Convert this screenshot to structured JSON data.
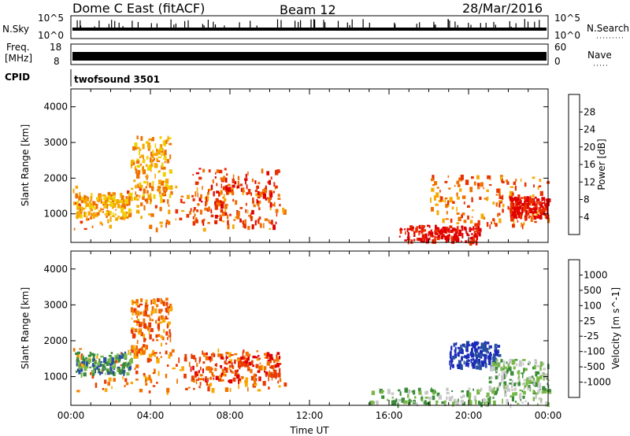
{
  "header": {
    "station": "Dome C East (fitACF)",
    "beam": "Beam 12",
    "date": "28/Mar/2016"
  },
  "strips": {
    "nsky": {
      "label": "N.Sky",
      "right_label": "N.Search",
      "left_ticks": [
        "10^5",
        "10^0"
      ],
      "right_ticks": [
        "10^5",
        "10^0"
      ]
    },
    "freq": {
      "label_line1": "Freq.",
      "label_line2": "[MHz]",
      "right_label": "Nave",
      "left_ticks": [
        "18",
        "8"
      ],
      "right_ticks": [
        "60",
        "0"
      ]
    },
    "cpid": {
      "label": "CPID",
      "value": "twofsound 3501"
    }
  },
  "colors": {
    "power_scale": [
      "#1414ff",
      "#1e50c8",
      "#2f8f3a",
      "#5aa35a",
      "#b8d83a",
      "#f0d000",
      "#f5a800",
      "#f07000",
      "#e83000",
      "#e00000"
    ],
    "velocity_scale": [
      "#e00000",
      "#e83a00",
      "#f07000",
      "#f8a800",
      "#f8d040",
      "#c8c8c8",
      "#78b848",
      "#3a8a3a",
      "#2850a0",
      "#1a2ab8"
    ]
  },
  "chart_data": [
    {
      "type": "heatmap",
      "name": "power",
      "ylabel": "Slant Range [km]",
      "yticks": [
        1000,
        2000,
        3000,
        4000
      ],
      "ylim": [
        200,
        4500
      ],
      "xlim": [
        0,
        24
      ],
      "colorbar": {
        "label": "Power [dB]",
        "ticks": [
          "28",
          "24",
          "20",
          "16",
          "12",
          "8",
          "4"
        ]
      },
      "regions": [
        {
          "t0": 0.1,
          "t1": 10.8,
          "r0": 600,
          "r1": 1800,
          "level": 7
        },
        {
          "t0": 0.2,
          "t1": 3.0,
          "r0": 900,
          "r1": 1600,
          "level": 6
        },
        {
          "t0": 3.0,
          "t1": 5.0,
          "r0": 1400,
          "r1": 3200,
          "level": 6
        },
        {
          "t0": 6.0,
          "t1": 10.5,
          "r0": 700,
          "r1": 2300,
          "level": 8
        },
        {
          "t0": 16.5,
          "t1": 20.5,
          "r0": 250,
          "r1": 700,
          "level": 9
        },
        {
          "t0": 18.0,
          "t1": 24.0,
          "r0": 700,
          "r1": 2100,
          "level": 7
        },
        {
          "t0": 22.0,
          "t1": 24.0,
          "r0": 900,
          "r1": 1500,
          "level": 9
        }
      ]
    },
    {
      "type": "heatmap",
      "name": "velocity",
      "ylabel": "Slant Range [km]",
      "xlabel": "Time UT",
      "xticks": [
        "00:00",
        "04:00",
        "08:00",
        "12:00",
        "16:00",
        "20:00",
        "00:00"
      ],
      "yticks": [
        1000,
        2000,
        3000,
        4000
      ],
      "ylim": [
        200,
        4500
      ],
      "xlim": [
        0,
        24
      ],
      "colorbar": {
        "label": "Velocity [m s^-1]",
        "ticks": [
          "1000",
          "500",
          "100",
          "25",
          "-25",
          "-100",
          "-500",
          "-1000"
        ]
      },
      "regions": [
        {
          "t0": 0.1,
          "t1": 10.8,
          "r0": 600,
          "r1": 1800,
          "level": 2
        },
        {
          "t0": 0.2,
          "t1": 3.0,
          "r0": 1100,
          "r1": 1700,
          "level": 7
        },
        {
          "t0": 3.0,
          "t1": 5.0,
          "r0": 1500,
          "r1": 3200,
          "level": 2
        },
        {
          "t0": 6.0,
          "t1": 10.5,
          "r0": 900,
          "r1": 1700,
          "level": 1
        },
        {
          "t0": 15.0,
          "t1": 24.0,
          "r0": 250,
          "r1": 700,
          "level": 6
        },
        {
          "t0": 19.0,
          "t1": 21.5,
          "r0": 1300,
          "r1": 2000,
          "level": 9
        },
        {
          "t0": 21.0,
          "t1": 24.0,
          "r0": 600,
          "r1": 1500,
          "level": 6
        }
      ]
    }
  ]
}
